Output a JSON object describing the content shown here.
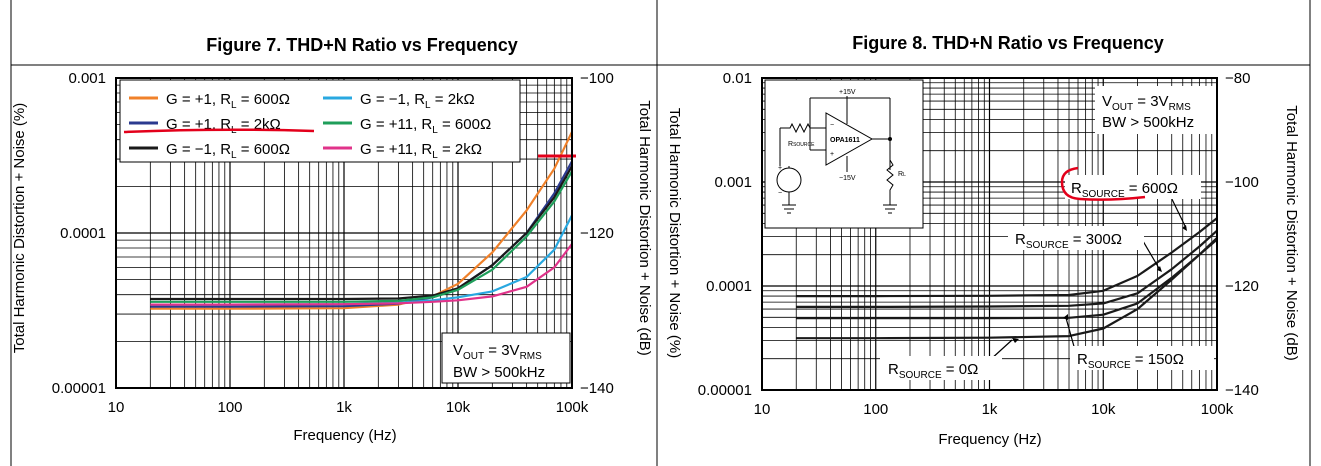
{
  "charts": [
    {
      "title": "Figure 7. THD+N Ratio vs Frequency",
      "chart_data": {
        "type": "line",
        "xscale": "log",
        "yscale": "log",
        "xlim": [
          10,
          100000
        ],
        "ylim": [
          1e-05,
          0.001
        ],
        "y2lim": [
          -140,
          -100
        ],
        "x_ticks": [
          "10",
          "100",
          "1k",
          "10k",
          "100k"
        ],
        "y_ticks": [
          "0.00001",
          "0.0001",
          "0.001"
        ],
        "y2_ticks": [
          "-140",
          "-120",
          "-100"
        ],
        "xlabel": "Frequency (Hz)",
        "ylabel": "Total Harmonic Distortion + Noise (%)",
        "y2label": "Total Harmonic Distortion + Noise (dB)",
        "legend_placement": "top-left",
        "annotation": {
          "line1": "V",
          "line1_sub": "OUT",
          "line1_rest": " = 3V",
          "line1_sub2": "RMS",
          "line2": "BW > 500kHz"
        },
        "series": [
          {
            "legend": "G = +1, R",
            "legend_sub": "L",
            "legend_rest": " = 600Ω",
            "color": "#f0812a",
            "x": [
              20,
              100,
              1000,
              3000,
              6000,
              10000,
              20000,
              40000,
              70000,
              100000
            ],
            "y": [
              3.25e-05,
              3.25e-05,
              3.27e-05,
              3.45e-05,
              3.9e-05,
              4.7e-05,
              7.5e-05,
              0.00014,
              0.00026,
              0.00045
            ]
          },
          {
            "legend": "G = +1, R",
            "legend_sub": "L",
            "legend_rest": " = 2kΩ",
            "color": "#2b3a8f",
            "x": [
              20,
              100,
              1000,
              3000,
              6000,
              10000,
              20000,
              40000,
              70000,
              100000
            ],
            "y": [
              3.35e-05,
              3.35e-05,
              3.37e-05,
              3.5e-05,
              3.85e-05,
              4.4e-05,
              6.2e-05,
              0.0001,
              0.00018,
              0.00029
            ]
          },
          {
            "legend": "G = −1, R",
            "legend_sub": "L",
            "legend_rest": " = 600Ω",
            "color": "#1a1a1a",
            "x": [
              20,
              100,
              1000,
              3000,
              6000,
              10000,
              20000,
              40000,
              70000,
              100000
            ],
            "y": [
              3.75e-05,
              3.75e-05,
              3.75e-05,
              3.78e-05,
              3.95e-05,
              4.4e-05,
              6.2e-05,
              0.0001,
              0.00017,
              0.00027
            ]
          },
          {
            "legend": "G = −1, R",
            "legend_sub": "L",
            "legend_rest": " = 2kΩ",
            "color": "#29a8e0",
            "x": [
              20,
              100,
              1000,
              3000,
              6000,
              10000,
              20000,
              40000,
              70000,
              100000
            ],
            "y": [
              3.45e-05,
              3.45e-05,
              3.47e-05,
              3.55e-05,
              3.68e-05,
              3.85e-05,
              4.2e-05,
              5.2e-05,
              7.8e-05,
              0.00013
            ]
          },
          {
            "legend": "G = +11, R",
            "legend_sub": "L",
            "legend_rest": " = 600Ω",
            "color": "#1f9e5a",
            "x": [
              20,
              100,
              1000,
              3000,
              6000,
              10000,
              20000,
              40000,
              70000,
              100000
            ],
            "y": [
              3.6e-05,
              3.6e-05,
              3.6e-05,
              3.65e-05,
              3.85e-05,
              4.3e-05,
              5.8e-05,
              9.5e-05,
              0.00016,
              0.00025
            ]
          },
          {
            "legend": "G = +11, R",
            "legend_sub": "L",
            "legend_rest": " = 2kΩ",
            "color": "#e0338a",
            "x": [
              20,
              100,
              1000,
              3000,
              6000,
              10000,
              20000,
              40000,
              70000,
              100000
            ],
            "y": [
              3.45e-05,
              3.45e-05,
              3.47e-05,
              3.52e-05,
              3.6e-05,
              3.68e-05,
              3.9e-05,
              4.5e-05,
              6e-05,
              8.5e-05
            ]
          }
        ]
      }
    },
    {
      "title": "Figure 8. THD+N Ratio vs Frequency",
      "chart_data": {
        "type": "line",
        "xscale": "log",
        "yscale": "log",
        "xlim": [
          10,
          100000
        ],
        "ylim": [
          1e-05,
          0.01
        ],
        "y2lim": [
          -140,
          -80
        ],
        "x_ticks": [
          "10",
          "100",
          "1k",
          "10k",
          "100k"
        ],
        "y_ticks": [
          "0.00001",
          "0.0001",
          "0.001",
          "0.01"
        ],
        "y2_ticks": [
          "-140",
          "-120",
          "-100",
          "-80"
        ],
        "xlabel": "Frequency (Hz)",
        "ylabel": "Total Harmonic Distortion + Noise (%)",
        "y2label": "Total Harmonic Distortion + Noise (dB)",
        "annotation": {
          "line1": "V",
          "line1_sub": "OUT",
          "line1_rest": " = 3V",
          "line1_sub2": "RMS",
          "line2": "BW > 500kHz"
        },
        "inset": {
          "labels": [
            "+15V",
            "−15V",
            "OPA1611",
            "R",
            "SOURCE",
            "R",
            "L",
            "+",
            "−",
            "−",
            "+"
          ]
        },
        "series": [
          {
            "label": "R",
            "label_sub": "SOURCE",
            "label_rest": " = 600Ω",
            "color": "#1a1a1a",
            "x": [
              20,
              100,
              1000,
              5000,
              10000,
              20000,
              40000,
              70000,
              100000
            ],
            "y": [
              8e-05,
              8e-05,
              8.05e-05,
              8.2e-05,
              9e-05,
              0.000125,
              0.00021,
              0.00033,
              0.00045
            ]
          },
          {
            "label": "R",
            "label_sub": "SOURCE",
            "label_rest": " = 300Ω",
            "color": "#1a1a1a",
            "x": [
              20,
              100,
              1000,
              5000,
              10000,
              20000,
              40000,
              70000,
              100000
            ],
            "y": [
              6.3e-05,
              6.3e-05,
              6.35e-05,
              6.45e-05,
              6.8e-05,
              8.5e-05,
              0.000145,
              0.00024,
              0.00034
            ]
          },
          {
            "label": "R",
            "label_sub": "SOURCE",
            "label_rest": " = 150Ω",
            "color": "#1a1a1a",
            "x": [
              20,
              100,
              1000,
              5000,
              10000,
              20000,
              40000,
              70000,
              100000
            ],
            "y": [
              4.9e-05,
              4.9e-05,
              4.9e-05,
              4.95e-05,
              5.3e-05,
              6.8e-05,
              0.00012,
              0.0002,
              0.00029
            ]
          },
          {
            "label": "R",
            "label_sub": "SOURCE",
            "label_rest": " = 0Ω",
            "color": "#1a1a1a",
            "x": [
              20,
              100,
              1000,
              5000,
              10000,
              20000,
              40000,
              70000,
              100000
            ],
            "y": [
              3.15e-05,
              3.15e-05,
              3.18e-05,
              3.3e-05,
              3.9e-05,
              6e-05,
              0.000115,
              0.0002,
              0.00028
            ]
          }
        ]
      }
    }
  ]
}
